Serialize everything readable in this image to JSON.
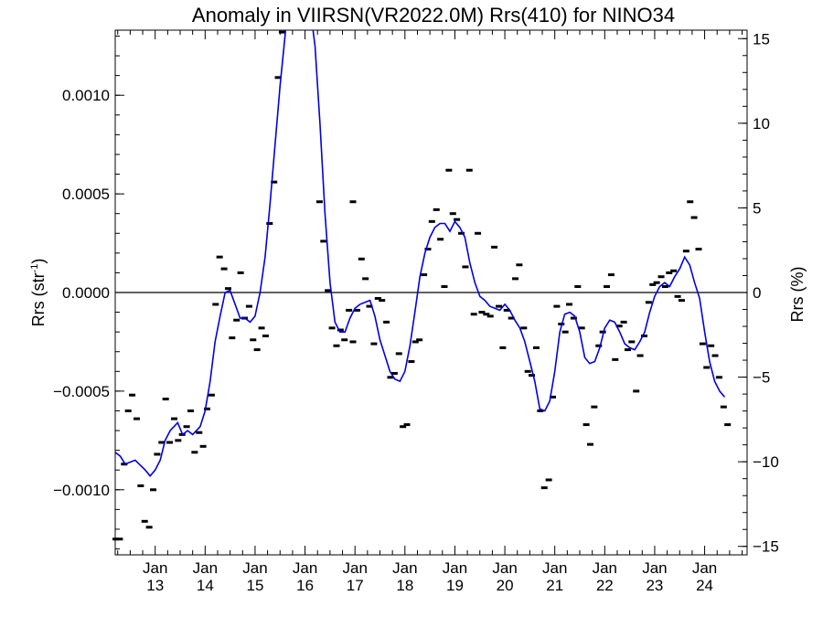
{
  "chart_data": {
    "type": "line",
    "title": "Anomaly in VIIRSN(VR2022.0M) Rrs(410) for NINO34",
    "ylabel_left": "Rrs (str",
    "ylabel_left_sup": "-1",
    "ylabel_left_close": ")",
    "ylabel_right": "Rrs (%)",
    "xlim": [
      2012.2,
      2024.85
    ],
    "ylim_left": [
      -0.00133,
      0.00133
    ],
    "ylim_right": [
      -15.5,
      15.5
    ],
    "zero_line": true,
    "grid": false,
    "left_ticks": [
      {
        "value": -0.001,
        "label": "−0.0010"
      },
      {
        "value": -0.0005,
        "label": "−0.0005"
      },
      {
        "value": 0.0,
        "label": "0.0000"
      },
      {
        "value": 0.0005,
        "label": "0.0005"
      },
      {
        "value": 0.001,
        "label": "0.0010"
      }
    ],
    "right_ticks": [
      {
        "value": -15,
        "label": "−15"
      },
      {
        "value": -10,
        "label": "−10"
      },
      {
        "value": -5,
        "label": "−5"
      },
      {
        "value": 0,
        "label": "0"
      },
      {
        "value": 5,
        "label": "5"
      },
      {
        "value": 10,
        "label": "10"
      },
      {
        "value": 15,
        "label": "15"
      }
    ],
    "x_ticks": [
      {
        "value": 2013.0,
        "line1": "Jan",
        "line2": "13"
      },
      {
        "value": 2014.0,
        "line1": "Jan",
        "line2": "14"
      },
      {
        "value": 2015.0,
        "line1": "Jan",
        "line2": "15"
      },
      {
        "value": 2016.0,
        "line1": "Jan",
        "line2": "16"
      },
      {
        "value": 2017.0,
        "line1": "Jan",
        "line2": "17"
      },
      {
        "value": 2018.0,
        "line1": "Jan",
        "line2": "18"
      },
      {
        "value": 2019.0,
        "line1": "Jan",
        "line2": "19"
      },
      {
        "value": 2020.0,
        "line1": "Jan",
        "line2": "20"
      },
      {
        "value": 2021.0,
        "line1": "Jan",
        "line2": "21"
      },
      {
        "value": 2022.0,
        "line1": "Jan",
        "line2": "22"
      },
      {
        "value": 2023.0,
        "line1": "Jan",
        "line2": "23"
      },
      {
        "value": 2024.0,
        "line1": "Jan",
        "line2": "24"
      }
    ],
    "series": [
      {
        "kind": "monthly-points",
        "color": "#000000",
        "points": [
          [
            2012.21,
            -0.00125
          ],
          [
            2012.29,
            -0.00125
          ],
          [
            2012.38,
            -0.00087
          ],
          [
            2012.46,
            -0.0006
          ],
          [
            2012.54,
            -0.00052
          ],
          [
            2012.63,
            -0.00064
          ],
          [
            2012.71,
            -0.00098
          ],
          [
            2012.79,
            -0.00116
          ],
          [
            2012.88,
            -0.00119
          ],
          [
            2012.96,
            -0.001
          ],
          [
            2013.04,
            -0.00082
          ],
          [
            2013.13,
            -0.00076
          ],
          [
            2013.21,
            -0.00054
          ],
          [
            2013.29,
            -0.00076
          ],
          [
            2013.38,
            -0.00064
          ],
          [
            2013.46,
            -0.00075
          ],
          [
            2013.54,
            -0.00072
          ],
          [
            2013.63,
            -0.00068
          ],
          [
            2013.71,
            -0.0006
          ],
          [
            2013.79,
            -0.00081
          ],
          [
            2013.88,
            -0.00071
          ],
          [
            2013.96,
            -0.00078
          ],
          [
            2014.04,
            -0.00059
          ],
          [
            2014.13,
            -0.00052
          ],
          [
            2014.21,
            -6e-05
          ],
          [
            2014.29,
            0.00018
          ],
          [
            2014.38,
            0.00012
          ],
          [
            2014.46,
            2e-05
          ],
          [
            2014.54,
            -0.00023
          ],
          [
            2014.63,
            -0.00014
          ],
          [
            2014.71,
            0.0001
          ],
          [
            2014.79,
            -0.00013
          ],
          [
            2014.88,
            -7e-05
          ],
          [
            2014.96,
            -0.00024
          ],
          [
            2015.04,
            -0.00029
          ],
          [
            2015.13,
            -0.00018
          ],
          [
            2015.21,
            -0.00022
          ],
          [
            2015.29,
            0.00035
          ],
          [
            2015.38,
            0.00056
          ],
          [
            2015.46,
            0.00109
          ],
          [
            2015.54,
            0.00132
          ],
          [
            2016.96,
            0.00046
          ],
          [
            2016.29,
            0.00046
          ],
          [
            2016.37,
            0.00026
          ],
          [
            2016.46,
            1e-05
          ],
          [
            2016.54,
            -0.00018
          ],
          [
            2016.63,
            -0.00027
          ],
          [
            2016.71,
            -0.00019
          ],
          [
            2016.79,
            -0.00024
          ],
          [
            2016.88,
            -9e-05
          ],
          [
            2016.96,
            -0.00025
          ],
          [
            2017.04,
            -9e-05
          ],
          [
            2017.13,
            0.00017
          ],
          [
            2017.21,
            7e-05
          ],
          [
            2017.29,
            -7e-05
          ],
          [
            2017.38,
            -0.00026
          ],
          [
            2017.46,
            -3e-05
          ],
          [
            2017.54,
            -4e-05
          ],
          [
            2017.63,
            -0.00015
          ],
          [
            2017.71,
            -0.00043
          ],
          [
            2017.79,
            -0.00041
          ],
          [
            2017.88,
            -0.00031
          ],
          [
            2017.96,
            -0.00068
          ],
          [
            2018.04,
            -0.00067
          ],
          [
            2018.13,
            -0.00035
          ],
          [
            2018.21,
            -0.00025
          ],
          [
            2018.29,
            -0.00024
          ],
          [
            2018.38,
            9e-05
          ],
          [
            2018.46,
            0.00022
          ],
          [
            2018.54,
            0.00036
          ],
          [
            2018.63,
            0.00042
          ],
          [
            2018.71,
            0.00027
          ],
          [
            2018.79,
            3e-05
          ],
          [
            2018.88,
            0.00062
          ],
          [
            2018.96,
            0.0004
          ],
          [
            2019.04,
            0.00037
          ],
          [
            2019.13,
            0.0003
          ],
          [
            2019.21,
            0.00013
          ],
          [
            2019.29,
            0.00062
          ],
          [
            2019.38,
            -0.00011
          ],
          [
            2019.46,
            0.0003
          ],
          [
            2019.54,
            -0.0001
          ],
          [
            2019.63,
            -0.00011
          ],
          [
            2019.71,
            -0.00012
          ],
          [
            2019.79,
            0.00023
          ],
          [
            2019.88,
            -7e-05
          ],
          [
            2019.96,
            -0.00028
          ],
          [
            2020.04,
            -9e-05
          ],
          [
            2020.13,
            -0.00013
          ],
          [
            2020.21,
            7e-05
          ],
          [
            2020.29,
            0.00014
          ],
          [
            2020.38,
            -0.00018
          ],
          [
            2020.46,
            -0.0004
          ],
          [
            2020.54,
            -0.00042
          ],
          [
            2020.63,
            -0.00028
          ],
          [
            2020.71,
            -0.0006
          ],
          [
            2020.79,
            -0.00099
          ],
          [
            2020.88,
            -0.00095
          ],
          [
            2020.96,
            -0.00053
          ],
          [
            2021.04,
            -7e-05
          ],
          [
            2021.13,
            -0.00016
          ],
          [
            2021.21,
            -0.0002
          ],
          [
            2021.29,
            -6e-05
          ],
          [
            2021.38,
            -0.00013
          ],
          [
            2021.46,
            3e-05
          ],
          [
            2021.54,
            -0.00018
          ],
          [
            2021.63,
            -0.00067
          ],
          [
            2021.71,
            -0.00077
          ],
          [
            2021.79,
            -0.00058
          ],
          [
            2021.88,
            -0.00027
          ],
          [
            2021.96,
            -0.0002
          ],
          [
            2022.04,
            3e-05
          ],
          [
            2022.13,
            9e-05
          ],
          [
            2022.21,
            -0.00034
          ],
          [
            2022.29,
            -0.00017
          ],
          [
            2022.38,
            -0.00015
          ],
          [
            2022.46,
            -0.00029
          ],
          [
            2022.54,
            -0.00025
          ],
          [
            2022.63,
            -0.0005
          ],
          [
            2022.71,
            -0.00032
          ],
          [
            2022.79,
            -0.00022
          ],
          [
            2022.88,
            -5e-05
          ],
          [
            2022.96,
            4e-05
          ],
          [
            2023.04,
            5e-05
          ],
          [
            2023.13,
            8e-05
          ],
          [
            2023.21,
            3e-05
          ],
          [
            2023.29,
            0.0001
          ],
          [
            2023.38,
            0.00011
          ],
          [
            2023.46,
            -2e-05
          ],
          [
            2023.54,
            -4e-05
          ],
          [
            2023.63,
            0.00021
          ],
          [
            2023.71,
            0.00046
          ],
          [
            2023.79,
            0.00038
          ],
          [
            2023.88,
            0.00022
          ],
          [
            2023.96,
            -0.00026
          ],
          [
            2024.04,
            -0.00038
          ],
          [
            2024.13,
            -0.00027
          ],
          [
            2024.21,
            -0.00032
          ],
          [
            2024.29,
            -0.00043
          ],
          [
            2024.38,
            -0.00058
          ],
          [
            2024.46,
            -0.00067
          ]
        ]
      },
      {
        "kind": "smoothed-line",
        "color": "#0000e6",
        "points": [
          [
            2012.2,
            -0.00081
          ],
          [
            2012.3,
            -0.00083
          ],
          [
            2012.4,
            -0.00087
          ],
          [
            2012.6,
            -0.00085
          ],
          [
            2012.8,
            -0.0009
          ],
          [
            2012.9,
            -0.00093
          ],
          [
            2013.0,
            -0.0009
          ],
          [
            2013.1,
            -0.00085
          ],
          [
            2013.2,
            -0.00075
          ],
          [
            2013.3,
            -0.0007
          ],
          [
            2013.45,
            -0.00066
          ],
          [
            2013.55,
            -0.00072
          ],
          [
            2013.65,
            -0.0007
          ],
          [
            2013.75,
            -0.00072
          ],
          [
            2013.9,
            -0.00068
          ],
          [
            2014.0,
            -0.0006
          ],
          [
            2014.1,
            -0.00045
          ],
          [
            2014.2,
            -0.00025
          ],
          [
            2014.3,
            -0.00012
          ],
          [
            2014.4,
            0.0
          ],
          [
            2014.5,
            1e-05
          ],
          [
            2014.6,
            -6e-05
          ],
          [
            2014.7,
            -0.00013
          ],
          [
            2014.8,
            -0.00013
          ],
          [
            2014.9,
            -0.00015
          ],
          [
            2015.0,
            -0.00012
          ],
          [
            2015.1,
            0.0
          ],
          [
            2015.2,
            0.00018
          ],
          [
            2015.3,
            0.00045
          ],
          [
            2015.4,
            0.00075
          ],
          [
            2015.5,
            0.00105
          ],
          [
            2015.6,
            0.0013
          ],
          [
            2015.65,
            0.00145
          ],
          [
            2016.1,
            0.00145
          ],
          [
            2016.2,
            0.00125
          ],
          [
            2016.3,
            0.00085
          ],
          [
            2016.4,
            0.0004
          ],
          [
            2016.5,
            5e-05
          ],
          [
            2016.6,
            -0.00015
          ],
          [
            2016.7,
            -0.0002
          ],
          [
            2016.8,
            -0.0002
          ],
          [
            2016.9,
            -0.00013
          ],
          [
            2017.0,
            -8e-05
          ],
          [
            2017.1,
            -6e-05
          ],
          [
            2017.2,
            -5e-05
          ],
          [
            2017.3,
            -4e-05
          ],
          [
            2017.4,
            -0.00012
          ],
          [
            2017.5,
            -0.00024
          ],
          [
            2017.6,
            -0.00032
          ],
          [
            2017.7,
            -0.0004
          ],
          [
            2017.8,
            -0.00044
          ],
          [
            2017.9,
            -0.00045
          ],
          [
            2018.0,
            -0.0004
          ],
          [
            2018.1,
            -0.00027
          ],
          [
            2018.2,
            -0.0001
          ],
          [
            2018.3,
            8e-05
          ],
          [
            2018.4,
            0.0002
          ],
          [
            2018.5,
            0.00028
          ],
          [
            2018.6,
            0.00033
          ],
          [
            2018.7,
            0.00035
          ],
          [
            2018.8,
            0.00035
          ],
          [
            2018.9,
            0.00031
          ],
          [
            2019.0,
            0.00036
          ],
          [
            2019.1,
            0.00033
          ],
          [
            2019.2,
            0.00028
          ],
          [
            2019.3,
            0.00015
          ],
          [
            2019.4,
            5e-05
          ],
          [
            2019.5,
            -2e-05
          ],
          [
            2019.6,
            -4e-05
          ],
          [
            2019.7,
            -7e-05
          ],
          [
            2019.8,
            -8e-05
          ],
          [
            2019.9,
            -9e-05
          ],
          [
            2020.0,
            -6e-05
          ],
          [
            2020.1,
            -9e-05
          ],
          [
            2020.2,
            -0.00014
          ],
          [
            2020.3,
            -0.00018
          ],
          [
            2020.4,
            -0.00025
          ],
          [
            2020.5,
            -0.00035
          ],
          [
            2020.6,
            -0.00045
          ],
          [
            2020.7,
            -0.00059
          ],
          [
            2020.8,
            -0.0006
          ],
          [
            2020.9,
            -0.00055
          ],
          [
            2021.0,
            -0.0004
          ],
          [
            2021.1,
            -0.0002
          ],
          [
            2021.2,
            -0.00011
          ],
          [
            2021.3,
            -0.0001
          ],
          [
            2021.4,
            -0.00012
          ],
          [
            2021.5,
            -0.0002
          ],
          [
            2021.6,
            -0.00033
          ],
          [
            2021.7,
            -0.00036
          ],
          [
            2021.8,
            -0.00035
          ],
          [
            2021.9,
            -0.00028
          ],
          [
            2022.0,
            -0.00018
          ],
          [
            2022.1,
            -0.00014
          ],
          [
            2022.2,
            -0.00015
          ],
          [
            2022.3,
            -0.0002
          ],
          [
            2022.4,
            -0.00026
          ],
          [
            2022.5,
            -0.00028
          ],
          [
            2022.6,
            -0.00029
          ],
          [
            2022.7,
            -0.00025
          ],
          [
            2022.8,
            -0.0002
          ],
          [
            2022.9,
            -0.0001
          ],
          [
            2023.0,
            -2e-05
          ],
          [
            2023.1,
            3e-05
          ],
          [
            2023.2,
            5e-05
          ],
          [
            2023.3,
            3e-05
          ],
          [
            2023.4,
            8e-05
          ],
          [
            2023.5,
            0.00012
          ],
          [
            2023.6,
            0.00018
          ],
          [
            2023.7,
            0.00014
          ],
          [
            2023.8,
            5e-05
          ],
          [
            2023.9,
            -3e-05
          ],
          [
            2024.0,
            -0.0002
          ],
          [
            2024.1,
            -0.00035
          ],
          [
            2024.2,
            -0.00045
          ],
          [
            2024.3,
            -0.0005
          ],
          [
            2024.4,
            -0.00053
          ]
        ]
      }
    ]
  }
}
